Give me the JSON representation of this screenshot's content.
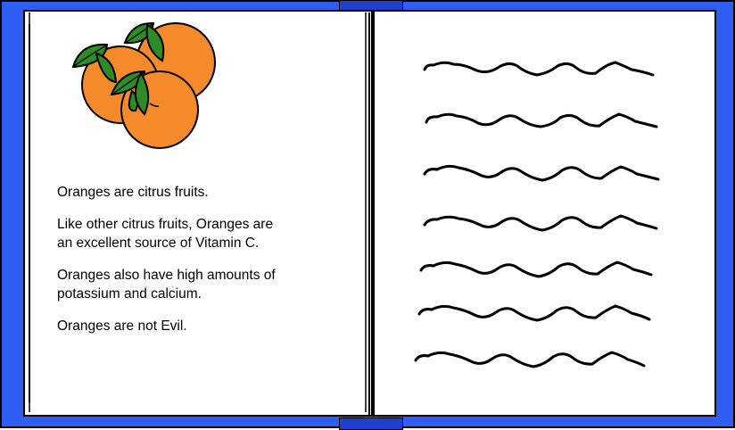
{
  "book": {
    "cover_color": "#2f5ef5",
    "left_page": {
      "illustration": "oranges-illustration",
      "paragraphs": [
        "Oranges are citrus fruits.",
        "Like other citrus fruits, Oranges are\nan excellent source of Vitamin C.",
        "Oranges also have high amounts of\npotassium and calcium.",
        "Oranges are not Evil."
      ]
    },
    "right_page": {
      "content": "scribbled-text-lines",
      "line_count": 7
    }
  }
}
